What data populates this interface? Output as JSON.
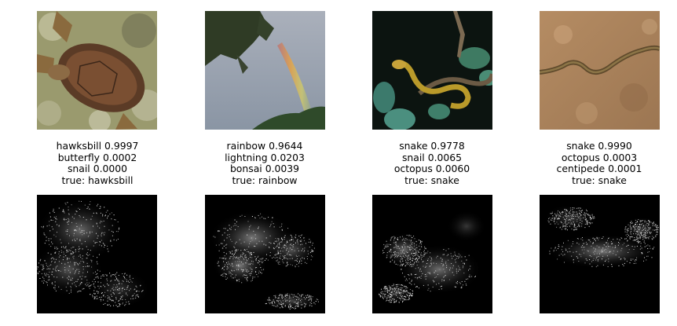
{
  "panels": [
    {
      "subject": "sea turtle",
      "predictions": [
        {
          "label": "hawksbill",
          "score": "0.9997"
        },
        {
          "label": "butterfly",
          "score": "0.0002"
        },
        {
          "label": "snail",
          "score": "0.0000"
        }
      ],
      "true_label": "hawksbill"
    },
    {
      "subject": "rainbow",
      "predictions": [
        {
          "label": "rainbow",
          "score": "0.9644"
        },
        {
          "label": "lightning",
          "score": "0.0203"
        },
        {
          "label": "bonsai",
          "score": "0.0039"
        }
      ],
      "true_label": "rainbow"
    },
    {
      "subject": "green snake on branch",
      "predictions": [
        {
          "label": "snake",
          "score": "0.9778"
        },
        {
          "label": "snail",
          "score": "0.0065"
        },
        {
          "label": "octopus",
          "score": "0.0060"
        }
      ],
      "true_label": "snake"
    },
    {
      "subject": "snake on sand",
      "predictions": [
        {
          "label": "snake",
          "score": "0.9990"
        },
        {
          "label": "octopus",
          "score": "0.0003"
        },
        {
          "label": "centipede",
          "score": "0.0001"
        }
      ],
      "true_label": "snake"
    }
  ]
}
